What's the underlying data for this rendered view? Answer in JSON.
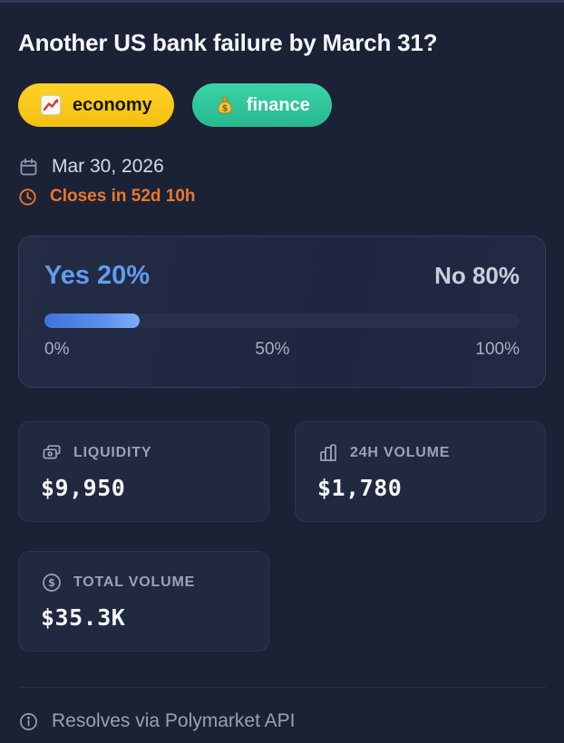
{
  "header": {
    "title": "Another US bank failure by March 31?",
    "tags": [
      {
        "label": "economy",
        "icon": "chart-increasing-icon",
        "bg": "#F5C415",
        "text_color": "#161616"
      },
      {
        "label": "finance",
        "icon": "money-bag-icon",
        "bg": "#2FC49D",
        "text_color": "#FFFFFF"
      }
    ],
    "date": "Mar 30, 2026",
    "closes_in": "Closes in 52d 10h"
  },
  "market": {
    "yes_label": "Yes 20%",
    "no_label": "No 80%",
    "yes_pct": 20,
    "scale": {
      "start": "0%",
      "mid": "50%",
      "end": "100%"
    }
  },
  "stats": [
    {
      "label": "LIQUIDITY",
      "value": "$9,950",
      "icon": "banknotes-icon"
    },
    {
      "label": "24H VOLUME",
      "value": "$1,780",
      "icon": "bar-chart-icon"
    },
    {
      "label": "TOTAL VOLUME",
      "value": "$35.3K",
      "icon": "dollar-circle-icon"
    }
  ],
  "footer": {
    "text": "Resolves via Polymarket API",
    "icon": "info-icon"
  },
  "colors": {
    "background": "#1C2236",
    "yes_blue": "#5F9DF0",
    "no_gray": "#C9CEDC",
    "progress_fill": "#5A90EA",
    "closes_orange": "#E9782E",
    "tag_economy_yellow": "#F5C415",
    "tag_finance_teal": "#2FC49D"
  }
}
